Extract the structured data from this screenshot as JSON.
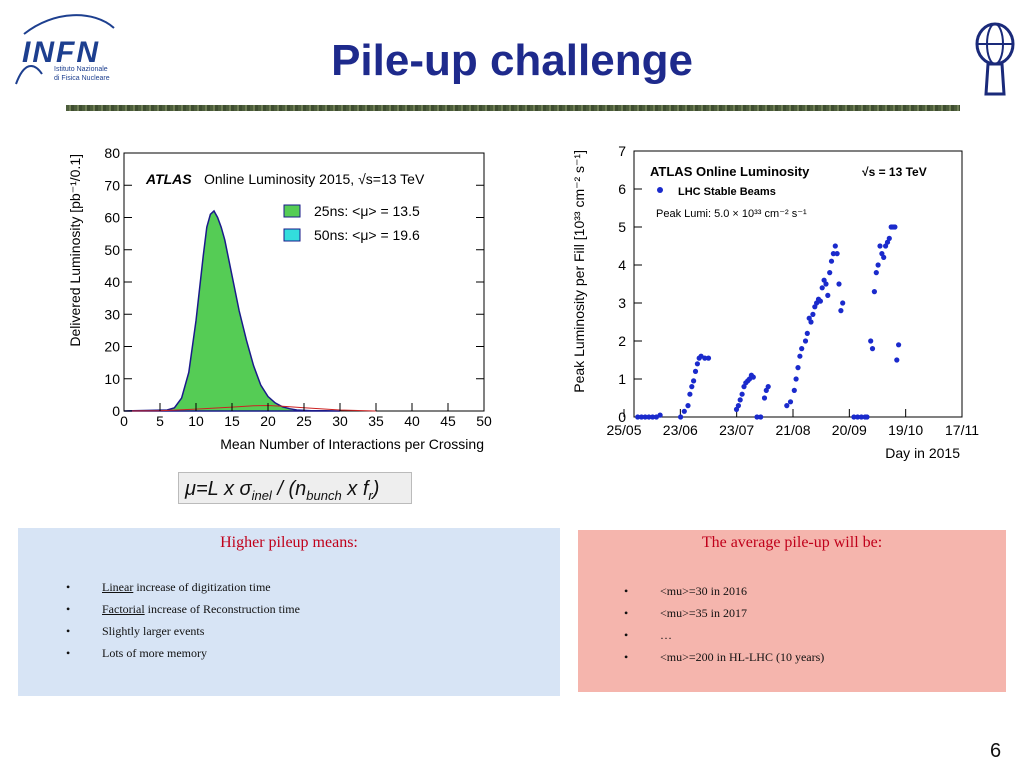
{
  "slide": {
    "title": "Pile-up challenge",
    "page_number": "6",
    "logo_left": {
      "name": "INFN",
      "line1": "Istituto Nazionale",
      "line2": "di Fisica Nucleare"
    }
  },
  "formula": "μ=L x σ_inel / (n_bunch x f_r)",
  "left_box": {
    "heading": "Higher pileup means:",
    "items": [
      {
        "em": "Linear",
        "rest": " increase of digitization time"
      },
      {
        "em": "Factorial",
        "rest": " increase of Reconstruction time"
      },
      {
        "em": "",
        "rest": "Slightly larger events"
      },
      {
        "em": "",
        "rest": "Lots of more memory"
      }
    ]
  },
  "right_box": {
    "heading": "The average pile-up will be:",
    "items": [
      "<mu>=30 in 2016",
      "<mu>=35 in 2017",
      "…",
      "<mu>=200 in HL-LHC (10 years)"
    ]
  },
  "chart_data": [
    {
      "type": "area",
      "atlas_label": "ATLAS",
      "title": "Online Luminosity 2015, √s=13 TeV",
      "xlabel": "Mean Number of Interactions per Crossing",
      "ylabel": "Delivered Luminosity [pb⁻¹/0.1]",
      "xlim": [
        0,
        50
      ],
      "ylim": [
        0,
        80
      ],
      "xticks": [
        "0",
        "5",
        "10",
        "15",
        "20",
        "25",
        "30",
        "35",
        "40",
        "45",
        "50"
      ],
      "yticks": [
        "0",
        "10",
        "20",
        "30",
        "40",
        "50",
        "60",
        "70",
        "80"
      ],
      "legend": [
        "25ns: <μ> = 13.5",
        "50ns: <μ> = 19.6"
      ],
      "colors": {
        "25ns": "#55cc55",
        "50ns": "#33dddd",
        "outline": "#1a1a8a",
        "line50": "#cc2222"
      },
      "series": [
        {
          "name": "25ns: <μ> = 13.5",
          "x": [
            0,
            6,
            7,
            8,
            9,
            10,
            11,
            11.5,
            12,
            12.5,
            13,
            13.5,
            14,
            15,
            16,
            17,
            18,
            19,
            20,
            21,
            22,
            23,
            24,
            26,
            28,
            30
          ],
          "y": [
            0,
            0.3,
            1,
            4,
            12,
            28,
            48,
            57,
            61,
            62,
            60,
            57,
            53,
            42,
            31,
            22,
            14,
            8,
            4.5,
            2.5,
            1.3,
            0.7,
            0.3,
            0.1,
            0.05,
            0
          ]
        },
        {
          "name": "50ns: <μ> = 19.6",
          "x": [
            0,
            5,
            10,
            15,
            18,
            20,
            22,
            25,
            30,
            35
          ],
          "y": [
            0,
            0.1,
            0.6,
            1.2,
            1.6,
            1.7,
            1.5,
            1.0,
            0.3,
            0
          ]
        }
      ]
    },
    {
      "type": "scatter",
      "title": "ATLAS Online Luminosity",
      "energy": "√s = 13 TeV",
      "legend": [
        "LHC Stable Beams"
      ],
      "peak_note": "Peak Lumi: 5.0 × 10³³ cm⁻² s⁻¹",
      "xlabel": "Day in 2015",
      "ylabel": "Peak Luminosity per Fill [10³³ cm⁻² s⁻¹]",
      "ylim": [
        0,
        7
      ],
      "yticks": [
        "0",
        "1",
        "2",
        "3",
        "4",
        "5",
        "6",
        "7"
      ],
      "xticks": [
        "25/05",
        "23/06",
        "23/07",
        "21/08",
        "20/09",
        "19/10",
        "17/11"
      ],
      "x_unit": "days since 25/05",
      "xlim": [
        0,
        176
      ],
      "color": "#1a2acc",
      "points": [
        [
          2,
          0
        ],
        [
          4,
          0
        ],
        [
          6,
          0
        ],
        [
          8,
          0
        ],
        [
          10,
          0
        ],
        [
          12,
          0
        ],
        [
          14,
          0.05
        ],
        [
          25,
          0
        ],
        [
          27,
          0.15
        ],
        [
          29,
          0.3
        ],
        [
          30,
          0.6
        ],
        [
          31,
          0.8
        ],
        [
          32,
          0.95
        ],
        [
          33,
          1.2
        ],
        [
          34,
          1.4
        ],
        [
          35,
          1.55
        ],
        [
          36,
          1.6
        ],
        [
          38,
          1.55
        ],
        [
          40,
          1.55
        ],
        [
          55,
          0.2
        ],
        [
          56,
          0.3
        ],
        [
          57,
          0.45
        ],
        [
          58,
          0.6
        ],
        [
          59,
          0.8
        ],
        [
          60,
          0.9
        ],
        [
          61,
          0.95
        ],
        [
          62,
          1.0
        ],
        [
          63,
          1.1
        ],
        [
          64,
          1.05
        ],
        [
          66,
          0
        ],
        [
          68,
          0
        ],
        [
          70,
          0.5
        ],
        [
          71,
          0.7
        ],
        [
          72,
          0.8
        ],
        [
          82,
          0.3
        ],
        [
          84,
          0.4
        ],
        [
          86,
          0.7
        ],
        [
          87,
          1.0
        ],
        [
          88,
          1.3
        ],
        [
          89,
          1.6
        ],
        [
          90,
          1.8
        ],
        [
          92,
          2.0
        ],
        [
          93,
          2.2
        ],
        [
          94,
          2.6
        ],
        [
          95,
          2.5
        ],
        [
          96,
          2.7
        ],
        [
          97,
          2.9
        ],
        [
          98,
          3.0
        ],
        [
          99,
          3.1
        ],
        [
          100,
          3.05
        ],
        [
          101,
          3.4
        ],
        [
          102,
          3.6
        ],
        [
          103,
          3.5
        ],
        [
          104,
          3.2
        ],
        [
          105,
          3.8
        ],
        [
          106,
          4.1
        ],
        [
          107,
          4.3
        ],
        [
          108,
          4.5
        ],
        [
          109,
          4.3
        ],
        [
          110,
          3.5
        ],
        [
          111,
          2.8
        ],
        [
          112,
          3.0
        ],
        [
          118,
          0
        ],
        [
          120,
          0
        ],
        [
          122,
          0
        ],
        [
          124,
          0
        ],
        [
          125,
          0
        ],
        [
          127,
          2.0
        ],
        [
          128,
          1.8
        ],
        [
          129,
          3.3
        ],
        [
          130,
          3.8
        ],
        [
          131,
          4.0
        ],
        [
          132,
          4.5
        ],
        [
          133,
          4.3
        ],
        [
          134,
          4.2
        ],
        [
          135,
          4.5
        ],
        [
          136,
          4.6
        ],
        [
          137,
          4.7
        ],
        [
          138,
          5.0
        ],
        [
          139,
          5.0
        ],
        [
          140,
          5.0
        ],
        [
          141,
          1.5
        ],
        [
          142,
          1.9
        ]
      ]
    }
  ]
}
